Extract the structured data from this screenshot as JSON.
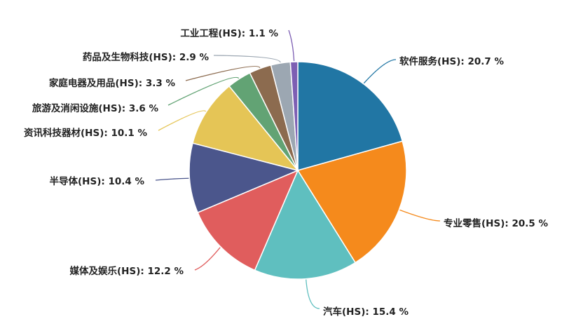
{
  "chart_data": {
    "type": "pie",
    "title": "",
    "start": "top",
    "direction": "clockwise",
    "label_format": "{name}: {value} %",
    "slices": [
      {
        "name": "软件服务(HS)",
        "value": 20.7,
        "color": "#2176a4"
      },
      {
        "name": "专业零售(HS)",
        "value": 20.5,
        "color": "#f58a1c"
      },
      {
        "name": "汽车(HS)",
        "value": 15.4,
        "color": "#5fbfbf"
      },
      {
        "name": "媒体及娱乐(HS)",
        "value": 12.2,
        "color": "#e05d5d"
      },
      {
        "name": "半导体(HS)",
        "value": 10.4,
        "color": "#4b568c"
      },
      {
        "name": "资讯科技器材(HS)",
        "value": 10.1,
        "color": "#e5c556"
      },
      {
        "name": "旅游及消闲设施(HS)",
        "value": 3.6,
        "color": "#62a374"
      },
      {
        "name": "家庭电器及用品(HS)",
        "value": 3.3,
        "color": "#8c6b4f"
      },
      {
        "name": "药品及生物科技(HS)",
        "value": 2.9,
        "color": "#9ca7b2"
      },
      {
        "name": "工业工程(HS)",
        "value": 1.1,
        "color": "#7d5fb3"
      }
    ]
  }
}
